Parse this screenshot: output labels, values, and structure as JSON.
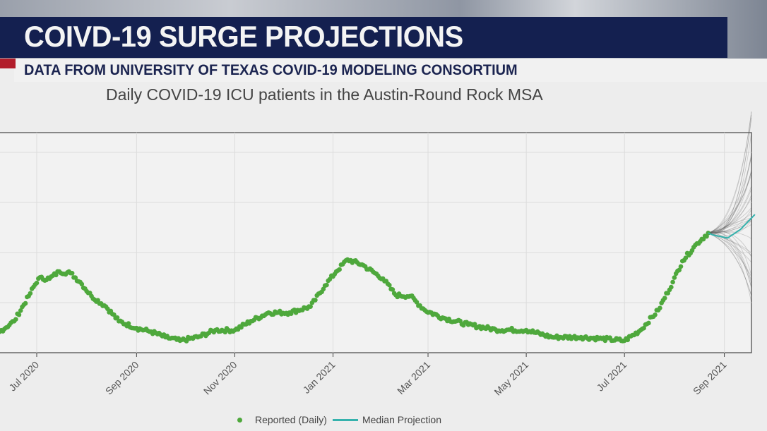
{
  "header": {
    "title": "COIVD-19 SURGE PROJECTIONS",
    "subtitle": "DATA FROM UNIVERSITY OF TEXAS COVID-19 MODELING CONSORTIUM"
  },
  "chart_data": {
    "type": "scatter",
    "title": "Daily COVID-19 ICU patients in the Austin-Round Rock MSA",
    "xlabel": "",
    "ylabel": "",
    "x_tick_labels": [
      "Jul 2020",
      "Sep 2020",
      "Nov 2020",
      "Jan 2021",
      "Mar 2021",
      "May 2021",
      "Jul 2021",
      "Sep 2021"
    ],
    "x_ticks": [
      "2020-07-01",
      "2020-09-01",
      "2020-11-01",
      "2021-01-01",
      "2021-03-01",
      "2021-05-01",
      "2021-07-01",
      "2021-09-01"
    ],
    "grid": true,
    "legend": "bottom",
    "series": [
      {
        "name": "Reported (Daily)",
        "kind": "points",
        "color": "#4ea83c",
        "x": [
          "2020-06-08",
          "2020-06-17",
          "2020-06-26",
          "2020-07-02",
          "2020-07-09",
          "2020-07-15",
          "2020-07-22",
          "2020-07-28",
          "2020-08-04",
          "2020-08-13",
          "2020-08-21",
          "2020-09-01",
          "2020-09-10",
          "2020-09-19",
          "2020-09-28",
          "2020-10-09",
          "2020-10-20",
          "2020-11-01",
          "2020-11-11",
          "2020-11-22",
          "2020-12-05",
          "2020-12-18",
          "2020-12-27",
          "2021-01-03",
          "2021-01-10",
          "2021-01-19",
          "2021-02-01",
          "2021-02-09",
          "2021-02-18",
          "2021-02-27",
          "2021-03-10",
          "2021-03-26",
          "2021-04-12",
          "2021-05-01",
          "2021-05-17",
          "2021-06-04",
          "2021-06-17",
          "2021-07-01",
          "2021-07-11",
          "2021-07-22",
          "2021-07-31",
          "2021-08-06",
          "2021-08-15",
          "2021-08-22"
        ],
        "y": [
          42,
          63,
          113,
          148,
          148,
          162,
          159,
          141,
          113,
          92,
          63,
          49,
          42,
          31,
          24,
          31,
          45,
          45,
          63,
          80,
          80,
          92,
          134,
          162,
          186,
          176,
          148,
          115,
          113,
          85,
          70,
          56,
          46,
          45,
          31,
          31,
          28,
          24,
          45,
          85,
          141,
          183,
          218,
          239
        ]
      },
      {
        "name": "Median Projection",
        "kind": "line",
        "color": "#35b2ad",
        "x": [
          "2021-08-22",
          "2021-08-25",
          "2021-09-03",
          "2021-09-11",
          "2021-09-20"
        ],
        "y": [
          239,
          235,
          229,
          246,
          276
        ]
      }
    ]
  }
}
